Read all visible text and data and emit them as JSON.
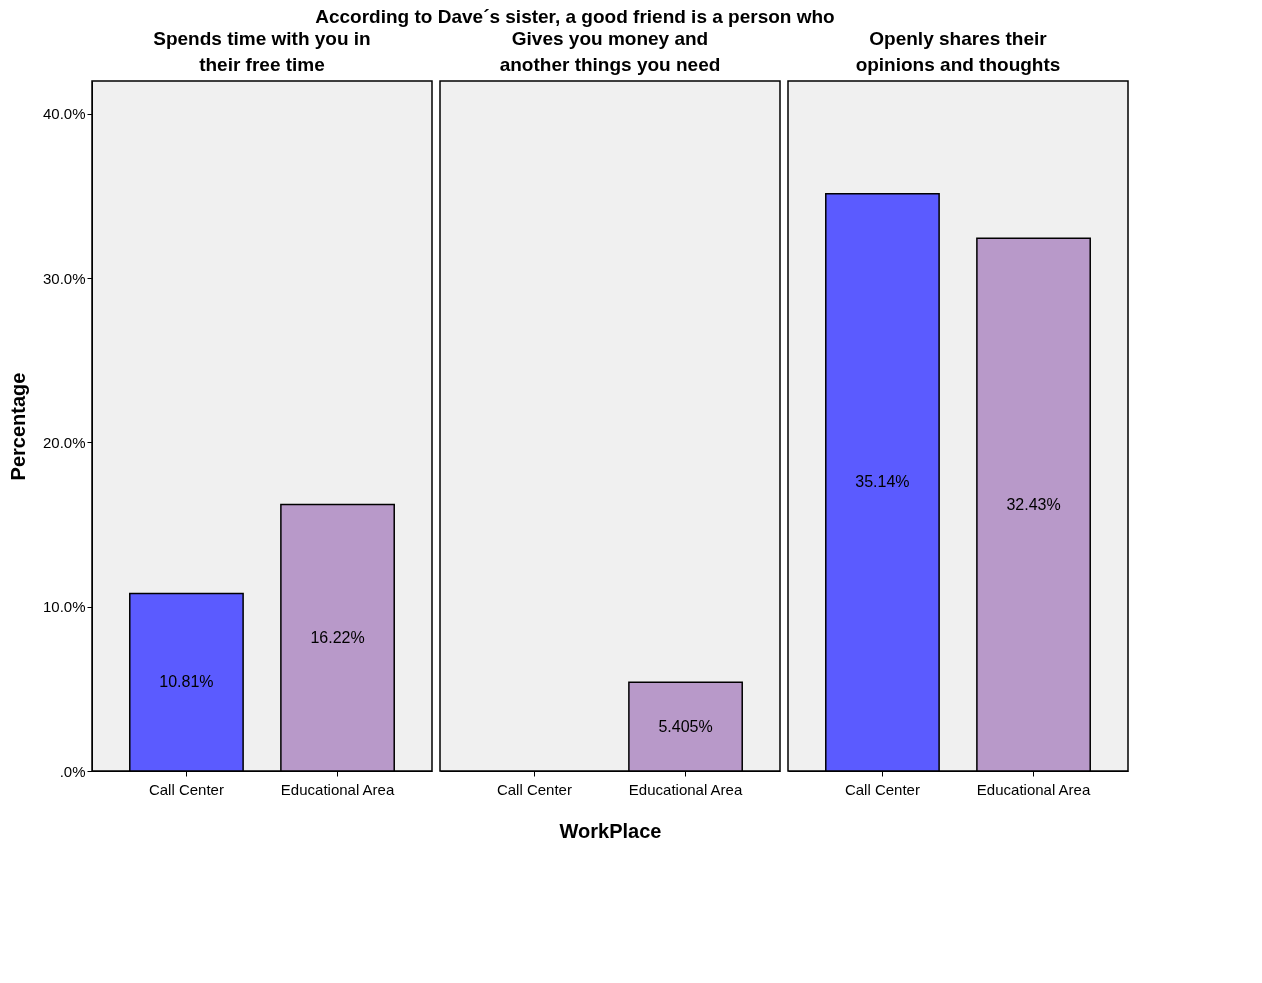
{
  "chart_data": [
    {
      "type": "bar",
      "annotations": [
        "According to Dave´s sister, a good friend is a person who"
      ],
      "title": "Spends time with you in their free time",
      "ylabel": "Percentage",
      "categories": [
        "Call Center",
        "Educational Area"
      ],
      "values": [
        10.81,
        16.22
      ],
      "colors": [
        "#5b5bff",
        "#b899c9"
      ],
      "value_labels": [
        "10.81%",
        "16.22%"
      ],
      "ylim": [
        0,
        42
      ],
      "yticks": [
        {
          "value": 0,
          "label": ".0%"
        },
        {
          "value": 10,
          "label": "10.0%"
        },
        {
          "value": 20,
          "label": "20.0%"
        },
        {
          "value": 30,
          "label": "30.0%"
        },
        {
          "value": 40,
          "label": "40.0%"
        }
      ],
      "grid": false
    },
    {
      "type": "bar",
      "title": "Gives you money and another things you need",
      "xlabel": "WorkPlace",
      "categories": [
        "Call Center",
        "Educational Area"
      ],
      "values": [
        null,
        5.405
      ],
      "colors": [
        "#5b5bff",
        "#b899c9"
      ],
      "value_labels": [
        null,
        "5.405%"
      ],
      "ylim": [
        0,
        42
      ],
      "tick_labels": "x",
      "grid": false
    },
    {
      "type": "bar",
      "title": "Openly shares their opinions and thoughts",
      "categories": [
        "Call Center",
        "Educational Area"
      ],
      "values": [
        35.14,
        32.43
      ],
      "colors": [
        "#5b5bff",
        "#b899c9"
      ],
      "value_labels": [
        "35.14%",
        "32.43%"
      ],
      "ylim": [
        0,
        42
      ],
      "tick_labels": "x",
      "grid": false
    }
  ]
}
